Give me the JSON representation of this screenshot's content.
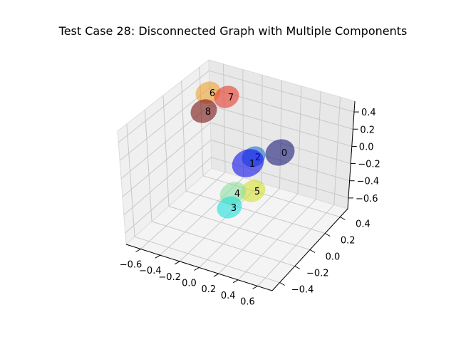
{
  "chart_data": {
    "type": "scatter",
    "projection": "3d",
    "title": "Test Case 28: Disconnected Graph with Multiple Components",
    "xlabel": "",
    "ylabel": "",
    "zlabel": "",
    "x_ticks": [
      "−0.6",
      "−0.4",
      "−0.2",
      "0.0",
      "0.2",
      "0.4",
      "0.6"
    ],
    "y_ticks": [
      "−0.4",
      "−0.2",
      "0.0",
      "0.2",
      "0.4"
    ],
    "z_ticks": [
      "−0.6",
      "−0.4",
      "−0.2",
      "0.0",
      "0.2",
      "0.4"
    ],
    "grid": true,
    "nodes": [
      {
        "label": "0",
        "color": "#1a1a7a"
      },
      {
        "label": "1",
        "color": "#1010ee"
      },
      {
        "label": "2",
        "color": "#1e6fcf"
      },
      {
        "label": "3",
        "color": "#1ee0d8"
      },
      {
        "label": "4",
        "color": "#8ee0a0"
      },
      {
        "label": "5",
        "color": "#d2e030"
      },
      {
        "label": "6",
        "color": "#f0a030"
      },
      {
        "label": "7",
        "color": "#e8392a"
      },
      {
        "label": "8",
        "color": "#7a1010"
      }
    ]
  }
}
